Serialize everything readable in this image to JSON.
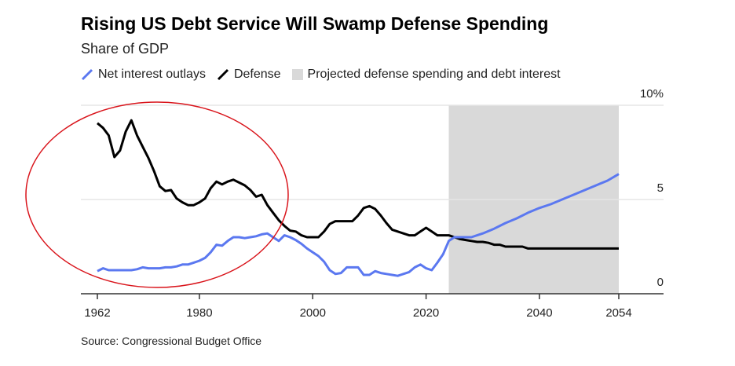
{
  "chart_data": {
    "type": "line",
    "title": "Rising US Debt Service Will Swamp Defense Spending",
    "subtitle": "Share of GDP",
    "source": "Source: Congressional Budget Office",
    "xlim": [
      1962,
      2054
    ],
    "ylim": [
      0,
      10
    ],
    "x_ticks": [
      1962,
      1980,
      2000,
      2020,
      2040,
      2054
    ],
    "y_ticks": [
      {
        "value": 0,
        "label": "0"
      },
      {
        "value": 5,
        "label": "5"
      },
      {
        "value": 10,
        "label": "10%"
      }
    ],
    "grid": "horizontal",
    "legend_position": "top",
    "projection": {
      "label": "Projected defense spending and debt interest",
      "start": 2024,
      "end": 2054,
      "color": "#d9d9d9"
    },
    "series": [
      {
        "name": "Net interest outlays",
        "color": "#5b78f0",
        "x": [
          1962,
          1963,
          1964,
          1965,
          1966,
          1967,
          1968,
          1969,
          1970,
          1971,
          1972,
          1973,
          1974,
          1975,
          1976,
          1977,
          1978,
          1979,
          1980,
          1981,
          1982,
          1983,
          1984,
          1985,
          1986,
          1987,
          1988,
          1989,
          1990,
          1991,
          1992,
          1993,
          1994,
          1995,
          1996,
          1997,
          1998,
          1999,
          2000,
          2001,
          2002,
          2003,
          2004,
          2005,
          2006,
          2007,
          2008,
          2009,
          2010,
          2011,
          2012,
          2013,
          2014,
          2015,
          2016,
          2017,
          2018,
          2019,
          2020,
          2021,
          2022,
          2023,
          2024,
          2025,
          2026,
          2027,
          2028,
          2029,
          2030,
          2032,
          2034,
          2036,
          2038,
          2040,
          2042,
          2044,
          2046,
          2048,
          2050,
          2052,
          2054
        ],
        "y": [
          1.2,
          1.35,
          1.25,
          1.25,
          1.25,
          1.25,
          1.25,
          1.3,
          1.4,
          1.35,
          1.35,
          1.35,
          1.4,
          1.4,
          1.45,
          1.55,
          1.55,
          1.65,
          1.75,
          1.9,
          2.2,
          2.6,
          2.55,
          2.8,
          3.0,
          3.0,
          2.95,
          3.0,
          3.05,
          3.15,
          3.2,
          3.0,
          2.8,
          3.1,
          3.0,
          2.85,
          2.65,
          2.4,
          2.2,
          2.0,
          1.7,
          1.25,
          1.05,
          1.1,
          1.4,
          1.4,
          1.4,
          1.0,
          1.0,
          1.2,
          1.1,
          1.05,
          1.0,
          0.95,
          1.05,
          1.15,
          1.4,
          1.55,
          1.35,
          1.25,
          1.65,
          2.1,
          2.8,
          3.0,
          3.0,
          3.0,
          3.0,
          3.1,
          3.2,
          3.45,
          3.75,
          4.0,
          4.3,
          4.55,
          4.75,
          5.0,
          5.25,
          5.5,
          5.75,
          6.0,
          6.35
        ]
      },
      {
        "name": "Defense",
        "color": "#000000",
        "x": [
          1962,
          1963,
          1964,
          1965,
          1966,
          1967,
          1968,
          1969,
          1970,
          1971,
          1972,
          1973,
          1974,
          1975,
          1976,
          1977,
          1978,
          1979,
          1980,
          1981,
          1982,
          1983,
          1984,
          1985,
          1986,
          1987,
          1988,
          1989,
          1990,
          1991,
          1992,
          1993,
          1994,
          1995,
          1996,
          1997,
          1998,
          1999,
          2000,
          2001,
          2002,
          2003,
          2004,
          2005,
          2006,
          2007,
          2008,
          2009,
          2010,
          2011,
          2012,
          2013,
          2014,
          2015,
          2016,
          2017,
          2018,
          2019,
          2020,
          2021,
          2022,
          2023,
          2024,
          2025,
          2026,
          2027,
          2028,
          2029,
          2030,
          2031,
          2032,
          2033,
          2034,
          2035,
          2036,
          2037,
          2038,
          2040,
          2045,
          2050,
          2054
        ],
        "y": [
          9.05,
          8.8,
          8.4,
          7.25,
          7.6,
          8.6,
          9.2,
          8.4,
          7.8,
          7.2,
          6.5,
          5.7,
          5.45,
          5.5,
          5.05,
          4.85,
          4.7,
          4.7,
          4.85,
          5.05,
          5.6,
          5.95,
          5.8,
          5.95,
          6.05,
          5.9,
          5.75,
          5.5,
          5.15,
          5.25,
          4.7,
          4.3,
          3.9,
          3.6,
          3.35,
          3.3,
          3.1,
          3.0,
          3.0,
          3.0,
          3.3,
          3.7,
          3.85,
          3.85,
          3.85,
          3.85,
          4.15,
          4.55,
          4.65,
          4.5,
          4.15,
          3.75,
          3.4,
          3.3,
          3.2,
          3.1,
          3.1,
          3.3,
          3.5,
          3.3,
          3.1,
          3.1,
          3.1,
          3.0,
          2.9,
          2.85,
          2.8,
          2.75,
          2.75,
          2.7,
          2.6,
          2.6,
          2.5,
          2.5,
          2.5,
          2.5,
          2.4,
          2.4,
          2.4,
          2.4,
          2.4
        ]
      }
    ]
  }
}
